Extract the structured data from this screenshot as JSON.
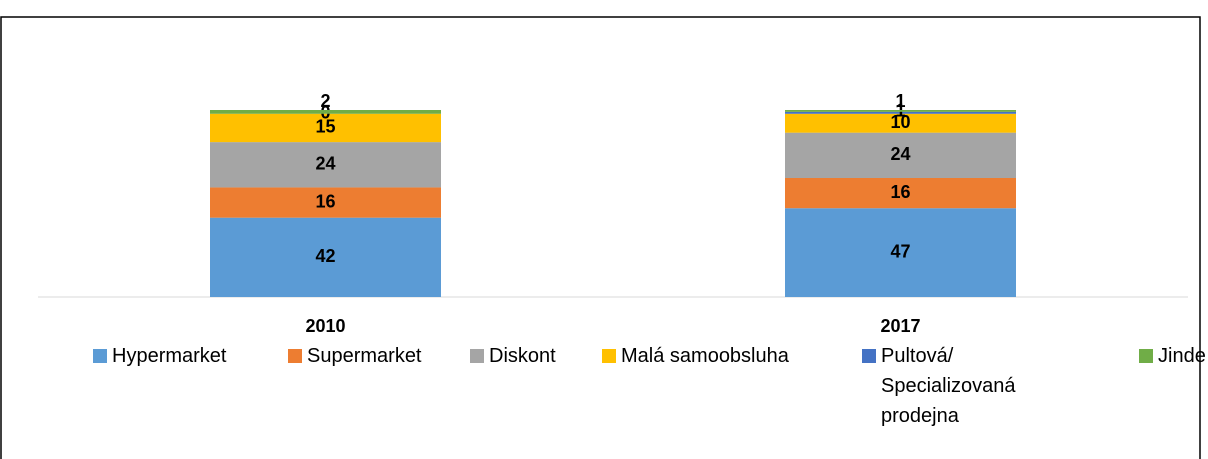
{
  "chart_data": {
    "type": "stacked_bar",
    "categories": [
      "2010",
      "2017"
    ],
    "series": [
      {
        "name": "Hypermarket",
        "color": "#5b9bd5",
        "values": [
          42,
          47
        ]
      },
      {
        "name": "Supermarket",
        "color": "#ed7d31",
        "values": [
          16,
          16
        ]
      },
      {
        "name": "Diskont",
        "color": "#a5a5a5",
        "values": [
          24,
          24
        ]
      },
      {
        "name": "Malá samoobsluha",
        "color": "#ffc000",
        "values": [
          15,
          10
        ]
      },
      {
        "name": "Pultová/ Specializovaná prodejna",
        "color": "#4472c4",
        "values": [
          0,
          1
        ]
      },
      {
        "name": "Jinde",
        "color": "#70ad47",
        "values": [
          2,
          1
        ]
      }
    ],
    "legend": "bottom"
  }
}
